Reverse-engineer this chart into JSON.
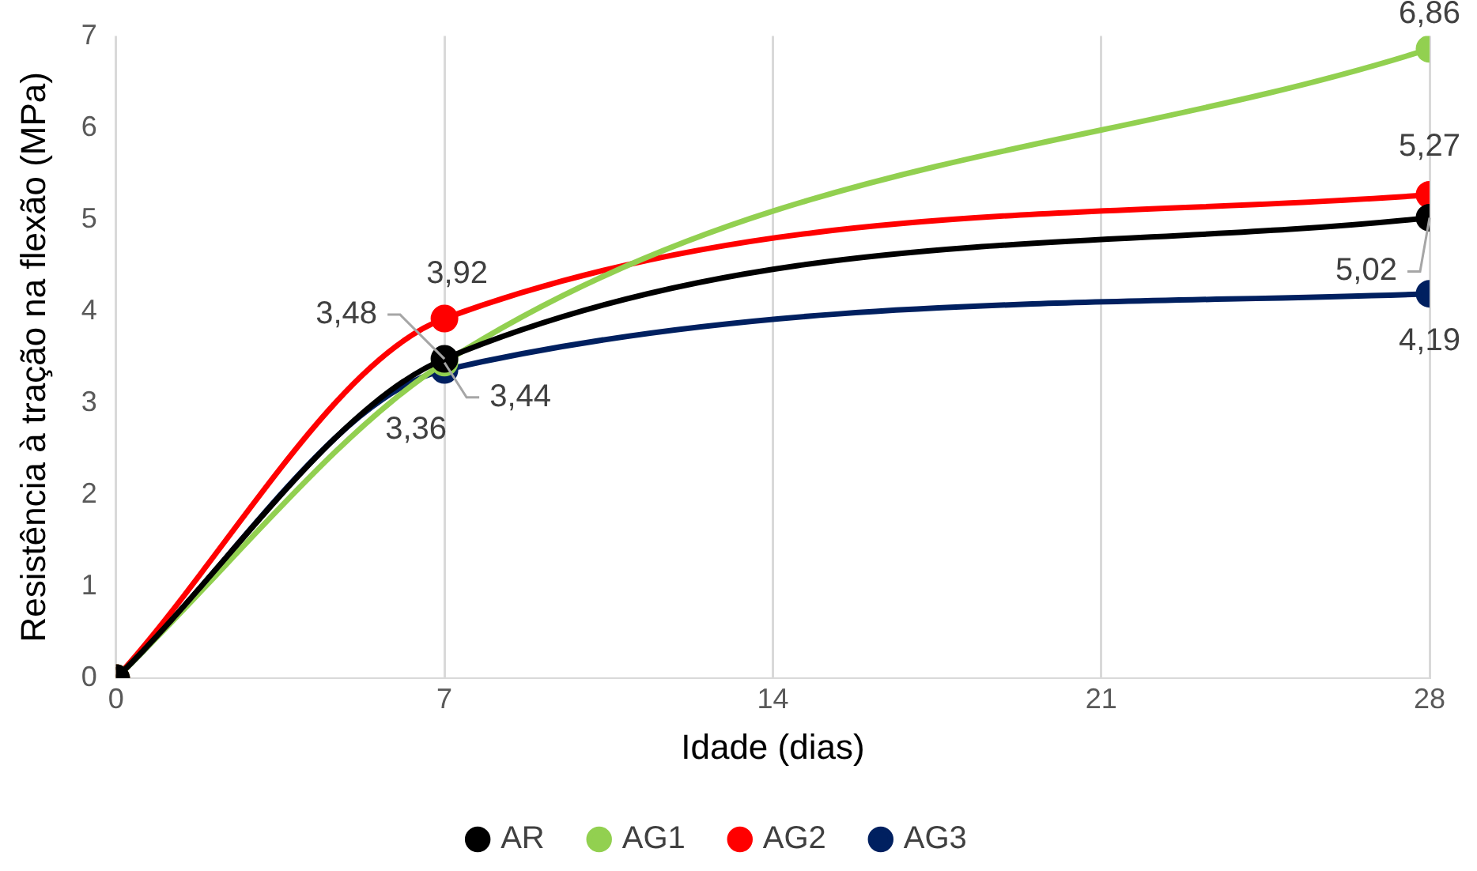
{
  "chart_data": {
    "type": "line",
    "xlabel": "Idade (dias)",
    "ylabel": "Resistência à tração na flexão (MPa)",
    "x": [
      0,
      7,
      28
    ],
    "xlim": [
      0,
      28
    ],
    "xticks": [
      0,
      7,
      14,
      21,
      28
    ],
    "ylim": [
      0,
      7
    ],
    "yticks": [
      0,
      1,
      2,
      3,
      4,
      5,
      6,
      7
    ],
    "grid": "x",
    "legend": "bottom",
    "marker": "circle",
    "line_style": "solid",
    "series": [
      {
        "name": "AR",
        "color": "#000000",
        "values": [
          0,
          3.48,
          5.02
        ],
        "value_labels": [
          null,
          "3,48",
          "5,02"
        ]
      },
      {
        "name": "AG1",
        "color": "#92d050",
        "values": [
          0,
          3.44,
          6.86
        ],
        "value_labels": [
          null,
          "3,44",
          "6,86"
        ]
      },
      {
        "name": "AG2",
        "color": "#ff0000",
        "values": [
          0,
          3.92,
          5.27
        ],
        "value_labels": [
          null,
          "3,92",
          "5,27"
        ]
      },
      {
        "name": "AG3",
        "color": "#002060",
        "values": [
          0,
          3.36,
          4.19
        ],
        "value_labels": [
          null,
          "3,36",
          "4,19"
        ]
      }
    ]
  }
}
